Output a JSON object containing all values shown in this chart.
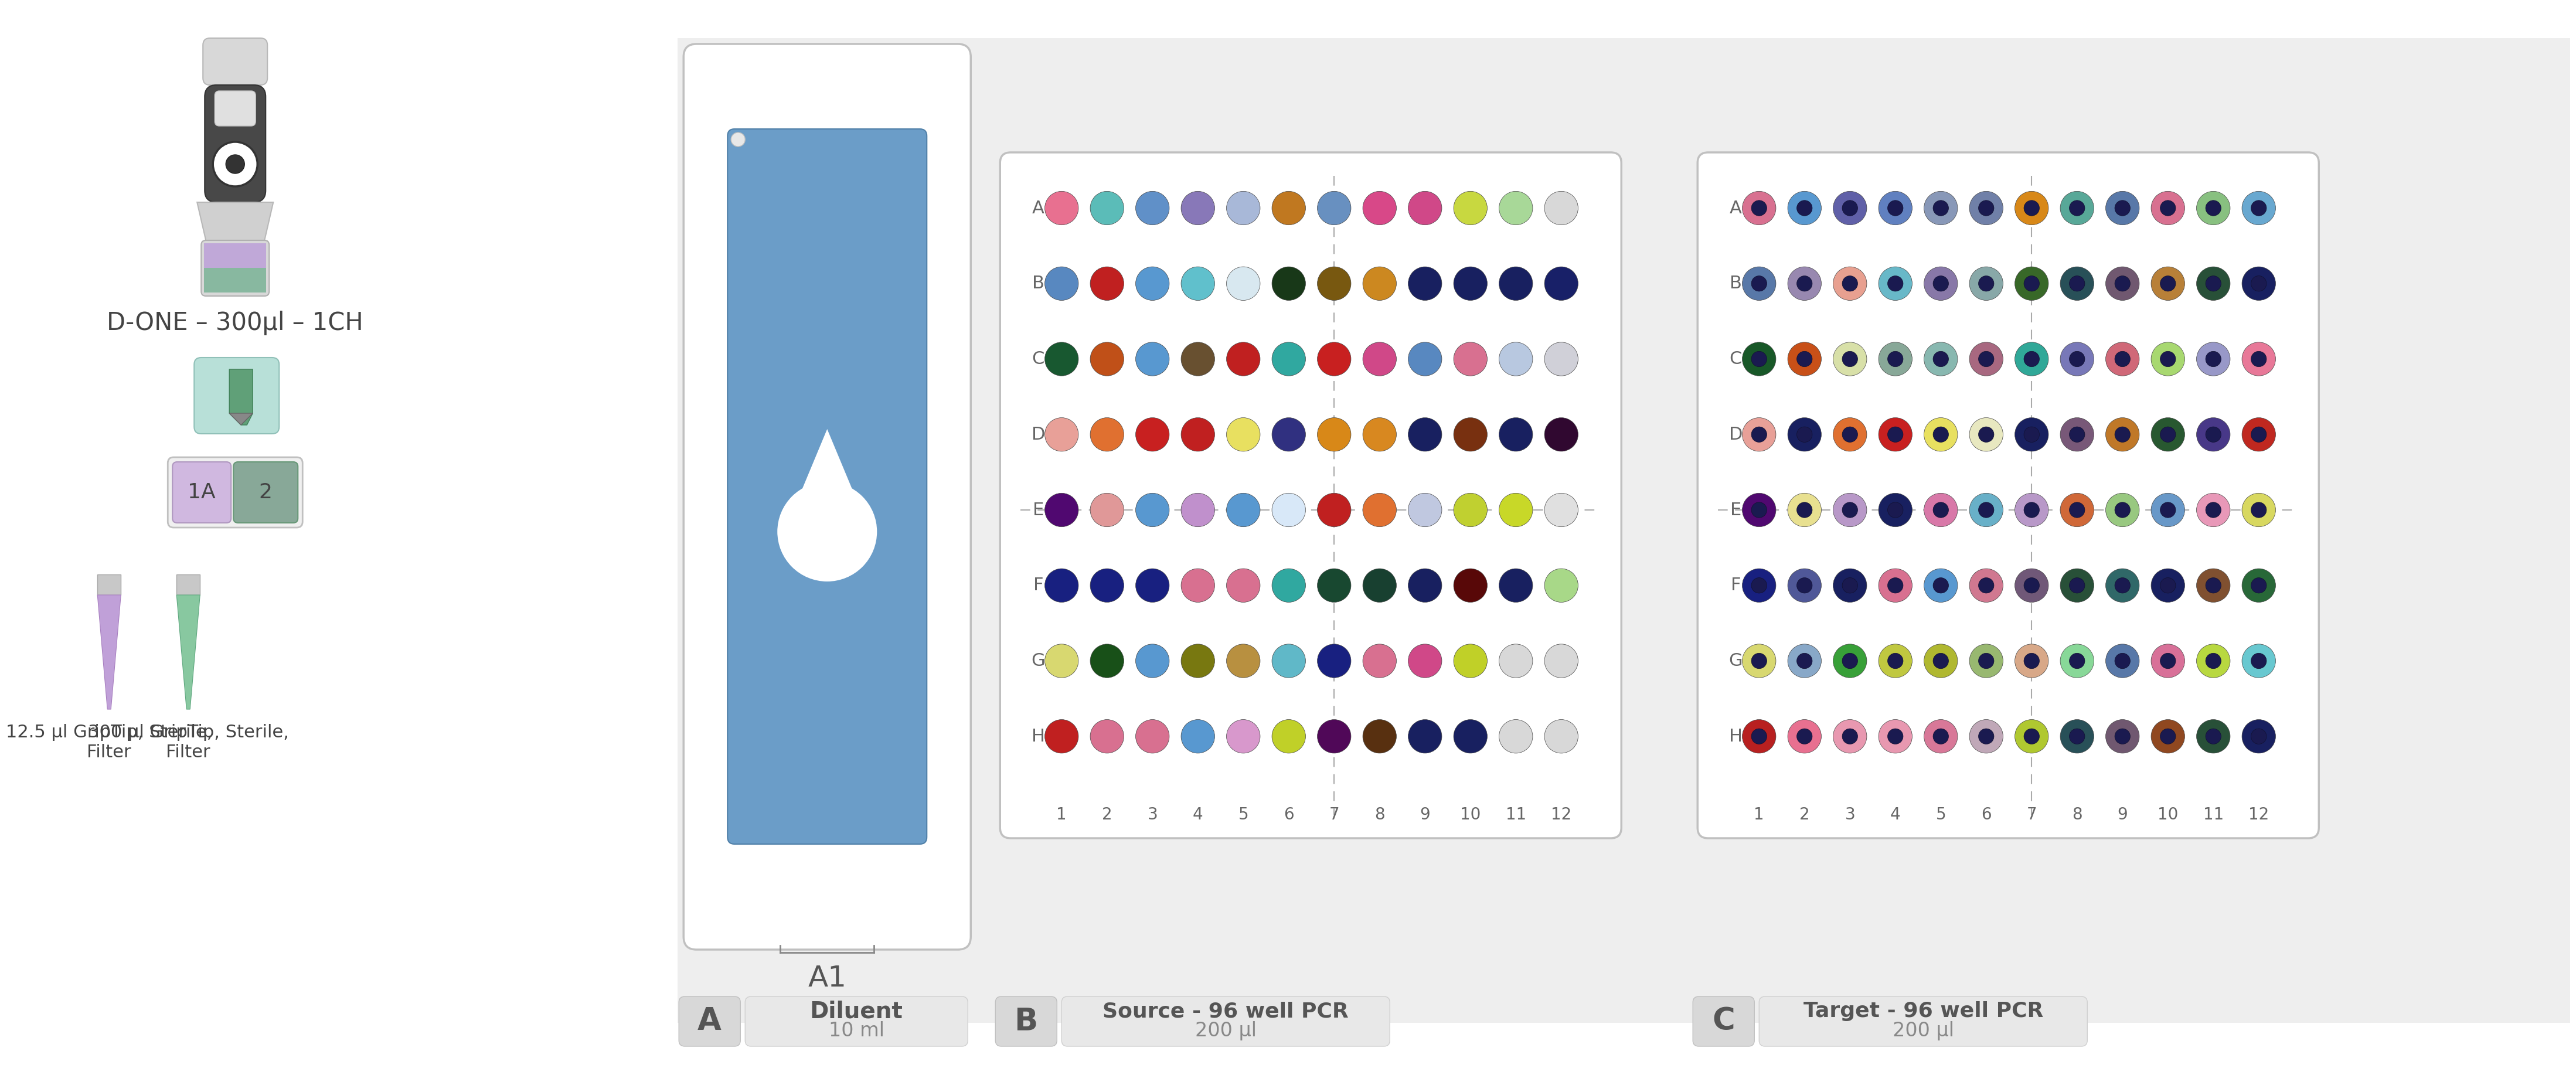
{
  "fig_width": 43.19,
  "fig_height": 18.31,
  "bg_color": "#eeeeee",
  "white": "#ffffff",
  "label_A": "A",
  "label_B": "B",
  "label_C": "C",
  "diluent_title": "Diluent",
  "diluent_vol": "10 ml",
  "source_title": "Source - 96 well PCR",
  "source_vol": "200 µl",
  "target_title": "Target - 96 well PCR",
  "target_vol": "200 µl",
  "doneLabel": "D-ONE – 300µl – 1CH",
  "tip1_label": "12.5 µl GripTip, Sterile,\nFilter",
  "tip2_label": "300 µl GripTip, Sterile,\nFilter",
  "row_labels": [
    "A",
    "B",
    "C",
    "D",
    "E",
    "F",
    "G",
    "H"
  ],
  "col_labels": [
    "1",
    "2",
    "3",
    "4",
    "5",
    "6",
    "7",
    "8",
    "9",
    "10",
    "11",
    "12"
  ],
  "source_colors_A": [
    "#e87090",
    "#5bbcb8",
    "#6090c8",
    "#8878b8",
    "#a8b8d8",
    "#c07820",
    "#6890c0",
    "#d84888",
    "#d04888",
    "#c8d840",
    "#a8d898",
    "#d8d8d8"
  ],
  "source_colors_B": [
    "#5888c0",
    "#c02020",
    "#5898d0",
    "#60c0cc",
    "#d8e8f0",
    "#183818",
    "#785810",
    "#cc8820",
    "#182060",
    "#182060",
    "#182060",
    "#182068"
  ],
  "source_colors_C": [
    "#185830",
    "#c05018",
    "#5898d0",
    "#685030",
    "#c02020",
    "#30a8a0",
    "#c82020",
    "#d04888",
    "#5888c0",
    "#d87090",
    "#b8c8e0",
    "#d0d0d8"
  ],
  "source_colors_D": [
    "#e8a098",
    "#e07030",
    "#c82020",
    "#c02020",
    "#e8e060",
    "#303080",
    "#d88818",
    "#d88820",
    "#182060",
    "#783010",
    "#182060",
    "#300830"
  ],
  "source_colors_E": [
    "#500870",
    "#e09898",
    "#5898d0",
    "#c090cc",
    "#5898d0",
    "#d8e8f8",
    "#c02020",
    "#e07030",
    "#c0c8e0",
    "#c0d030",
    "#c8d828",
    "#e0e0e0"
  ],
  "source_colors_F": [
    "#182080",
    "#182080",
    "#182080",
    "#d87090",
    "#d87090",
    "#30a8a0",
    "#184830",
    "#184030",
    "#182060",
    "#580808",
    "#182060",
    "#a8d888"
  ],
  "source_colors_G": [
    "#d8d870",
    "#185018",
    "#5898d0",
    "#787810",
    "#b89040",
    "#60b8c8",
    "#182080",
    "#d87090",
    "#d04888",
    "#c0d028",
    "#d8d8d8",
    "#d8d8d8"
  ],
  "source_colors_H": [
    "#c02020",
    "#d87090",
    "#d87090",
    "#5898d0",
    "#d898cc",
    "#c0d028",
    "#500858",
    "#583010",
    "#182060",
    "#182060",
    "#d8d8d8",
    "#d8d8d8"
  ],
  "target_outer_colors_A": [
    "#d87090",
    "#5898d0",
    "#6060a8",
    "#6080c0",
    "#8898b8",
    "#7080a8",
    "#d88818",
    "#58a898",
    "#5878a8",
    "#d87090",
    "#88c080",
    "#68a8d0"
  ],
  "target_outer_colors_B": [
    "#5878a8",
    "#9888b0",
    "#e8a090",
    "#68b8c8",
    "#8878a8",
    "#88a8a8",
    "#386828",
    "#285058",
    "#705870",
    "#b88038",
    "#285038",
    "#182060"
  ],
  "target_outer_colors_C": [
    "#185828",
    "#c85018",
    "#d8e0a8",
    "#88a898",
    "#88b8b0",
    "#a86880",
    "#30a898",
    "#7878b8",
    "#d06878",
    "#a8d870",
    "#9898c8",
    "#e87898"
  ],
  "target_outer_colors_D": [
    "#e8a098",
    "#182060",
    "#e07030",
    "#c82020",
    "#e8e060",
    "#e8e8c0",
    "#182060",
    "#785878",
    "#c07828",
    "#285830",
    "#483888",
    "#c02820"
  ],
  "target_outer_colors_E": [
    "#500870",
    "#e8e090",
    "#b898c8",
    "#182060",
    "#d878a8",
    "#68b0c8",
    "#b898c8",
    "#d06838",
    "#98c880",
    "#6898c8",
    "#e898b8",
    "#d8d860"
  ],
  "target_outer_colors_F": [
    "#182080",
    "#505898",
    "#182060",
    "#d87090",
    "#5898d0",
    "#d07890",
    "#705878",
    "#285038",
    "#306868",
    "#182060",
    "#805030",
    "#286838"
  ],
  "target_outer_colors_G": [
    "#d8d870",
    "#88a8c8",
    "#38a038",
    "#c0c840",
    "#b0b830",
    "#98b870",
    "#d8a888",
    "#88d898",
    "#5878a8",
    "#d87098",
    "#b8d840",
    "#68c8d0"
  ],
  "target_outer_colors_H": [
    "#b82020",
    "#e87090",
    "#e898b0",
    "#e898b0",
    "#d87898",
    "#c0a8b8",
    "#b0c830",
    "#285058",
    "#705870",
    "#904820",
    "#285038",
    "#182060"
  ],
  "target_inner_color": "#1a1a50"
}
